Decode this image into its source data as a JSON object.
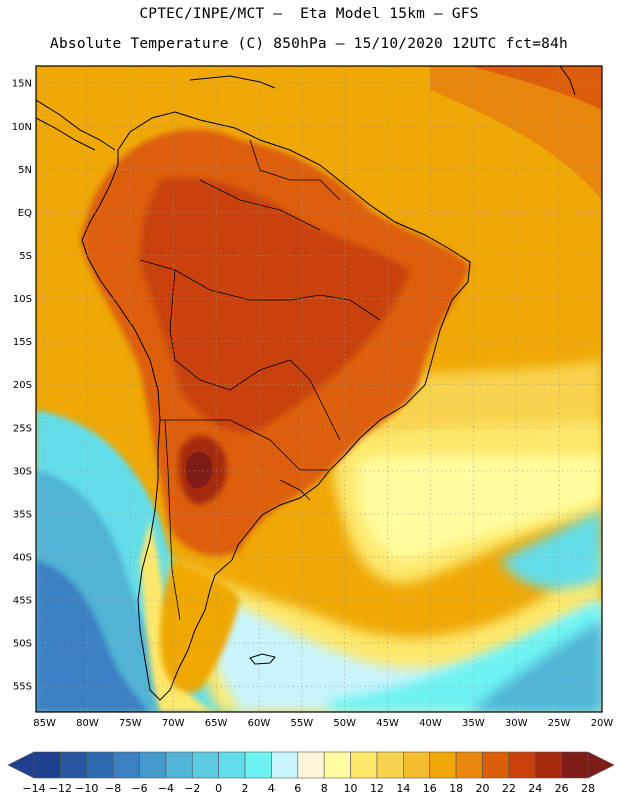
{
  "header": {
    "line1": "CPTEC/INPE/MCT –  Eta Model 15km – GFS",
    "line2": "Absolute Temperature (C) 850hPa – 15/10/2020 12UTC fct=84h"
  },
  "map": {
    "lat_labels": [
      "15N",
      "10N",
      "5N",
      "EQ",
      "5S",
      "10S",
      "15S",
      "20S",
      "25S",
      "30S",
      "35S",
      "40S",
      "45S",
      "50S",
      "55S"
    ],
    "lon_labels": [
      "85W",
      "80W",
      "75W",
      "70W",
      "65W",
      "60W",
      "55W",
      "50W",
      "45W",
      "40W",
      "35W",
      "30W",
      "25W",
      "20W"
    ],
    "lat_range": [
      17,
      -58
    ],
    "lon_range": [
      -86,
      -20
    ],
    "colors": {
      "ocean_warm": "#efa806",
      "land_hot": "#d35a0a",
      "land_hotter": "#c4480a",
      "hottest": "#8a2618",
      "cold_cyan": "#4fe0ec",
      "cold_blue": "#3a8fc8",
      "pale": "#fff9a8"
    }
  },
  "colorbar": {
    "labels": [
      "-14",
      "-12",
      "-10",
      "-8",
      "-6",
      "-4",
      "-2",
      "0",
      "2",
      "4",
      "6",
      "8",
      "10",
      "12",
      "14",
      "16",
      "18",
      "20",
      "22",
      "24",
      "26",
      "28"
    ],
    "colors": [
      "#1f3f8f",
      "#27569e",
      "#2f6ab0",
      "#3a80c2",
      "#449acb",
      "#51b4d6",
      "#5ccbe2",
      "#63dde9",
      "#6df3f2",
      "#c8f4fb",
      "#fff6d9",
      "#fffd9f",
      "#fde86c",
      "#f8d34e",
      "#f3bd2f",
      "#efa806",
      "#e9870c",
      "#dd5e0a",
      "#c9420d",
      "#a62c0f",
      "#7e1d17"
    ],
    "under_color": "#1f3f8f",
    "over_color": "#7e1d17"
  }
}
